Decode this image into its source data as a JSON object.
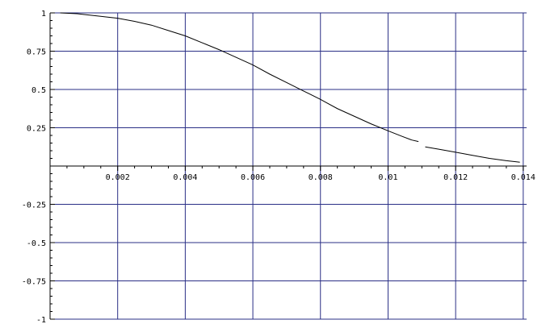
{
  "chart_data": {
    "type": "line",
    "xlim": [
      0,
      0.0141
    ],
    "ylim": [
      -1,
      1
    ],
    "grid": true,
    "colors": {
      "grid": "#2a2f86",
      "axis": "#000000",
      "line": "#000000"
    },
    "x_ticks": [
      {
        "value": 0.002,
        "label": "0.002"
      },
      {
        "value": 0.004,
        "label": "0.004"
      },
      {
        "value": 0.006,
        "label": "0.006"
      },
      {
        "value": 0.008,
        "label": "0.008"
      },
      {
        "value": 0.01,
        "label": "0.01"
      },
      {
        "value": 0.012,
        "label": "0.012"
      },
      {
        "value": 0.014,
        "label": "0.014"
      }
    ],
    "y_ticks": [
      {
        "value": 1,
        "label": "1"
      },
      {
        "value": 0.75,
        "label": "0.75"
      },
      {
        "value": 0.5,
        "label": "0.5"
      },
      {
        "value": 0.25,
        "label": "0.25"
      },
      {
        "value": -0.25,
        "label": "-0.25"
      },
      {
        "value": -0.5,
        "label": "-0.5"
      },
      {
        "value": -0.75,
        "label": "-0.75"
      },
      {
        "value": -1,
        "label": "-1"
      }
    ],
    "series": [
      {
        "values": [
          [
            0.0003,
            1.0
          ],
          [
            0.0008,
            0.995
          ],
          [
            0.0012,
            0.985
          ],
          [
            0.0016,
            0.975
          ],
          [
            0.002,
            0.965
          ],
          [
            0.0025,
            0.945
          ],
          [
            0.003,
            0.92
          ],
          [
            0.0035,
            0.885
          ],
          [
            0.004,
            0.85
          ],
          [
            0.0045,
            0.805
          ],
          [
            0.005,
            0.76
          ],
          [
            0.0055,
            0.71
          ],
          [
            0.006,
            0.66
          ],
          [
            0.0065,
            0.6
          ],
          [
            0.007,
            0.545
          ],
          [
            0.0075,
            0.49
          ],
          [
            0.008,
            0.435
          ],
          [
            0.0085,
            0.375
          ],
          [
            0.009,
            0.325
          ],
          [
            0.0095,
            0.275
          ],
          [
            0.01,
            0.23
          ],
          [
            0.0104,
            0.195
          ],
          [
            0.0107,
            0.17
          ],
          [
            0.0109,
            0.16
          ]
        ]
      },
      {
        "values": [
          [
            0.0111,
            0.125
          ],
          [
            0.0115,
            0.11
          ],
          [
            0.012,
            0.09
          ],
          [
            0.0125,
            0.07
          ],
          [
            0.013,
            0.05
          ],
          [
            0.0135,
            0.035
          ],
          [
            0.0139,
            0.025
          ]
        ]
      }
    ]
  }
}
